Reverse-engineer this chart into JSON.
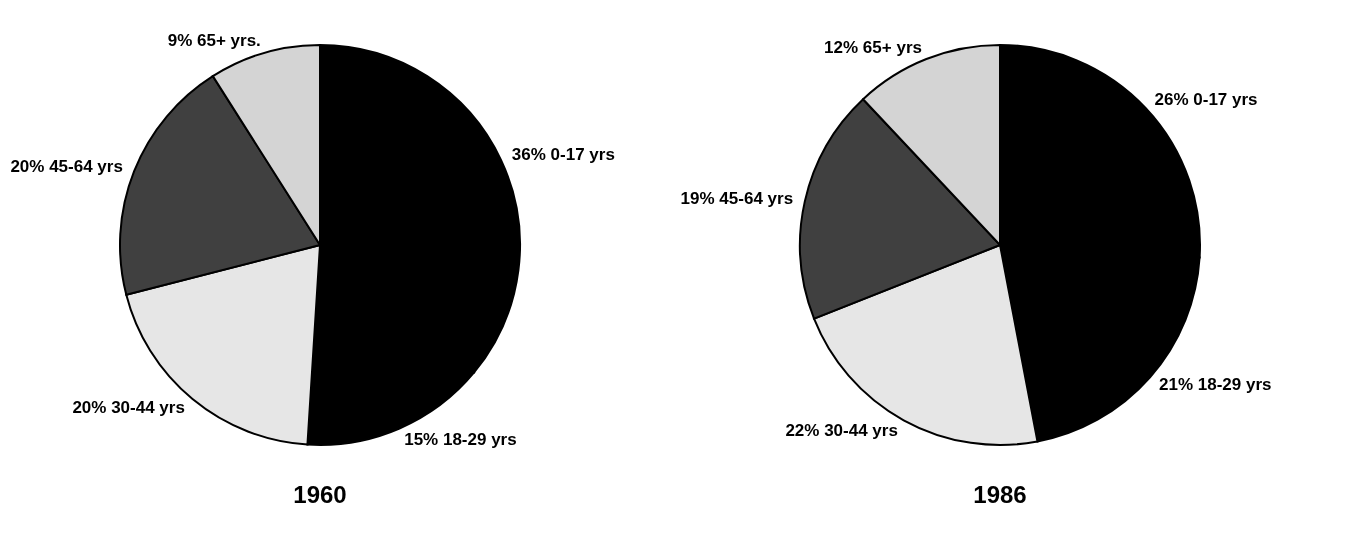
{
  "chart_data": [
    {
      "type": "pie",
      "title": "1960",
      "categories": [
        "0-17 yrs",
        "18-29 yrs",
        "30-44 yrs",
        "45-64 yrs",
        "65+ yrs."
      ],
      "values": [
        36,
        15,
        20,
        20,
        9
      ],
      "value_labels": [
        "36%",
        "15%",
        "20%",
        "20%",
        "9%"
      ],
      "colors": [
        "#000000",
        "#000000",
        "#e6e6e6",
        "#404040",
        "#d4d4d4"
      ]
    },
    {
      "type": "pie",
      "title": "1986",
      "categories": [
        "0-17 yrs",
        "18-29 yrs",
        "30-44 yrs",
        "45-64 yrs",
        "65+ yrs"
      ],
      "values": [
        26,
        21,
        22,
        19,
        12
      ],
      "value_labels": [
        "26%",
        "21%",
        "22%",
        "19%",
        "12%"
      ],
      "colors": [
        "#000000",
        "#000000",
        "#e6e6e6",
        "#404040",
        "#d4d4d4"
      ]
    }
  ]
}
